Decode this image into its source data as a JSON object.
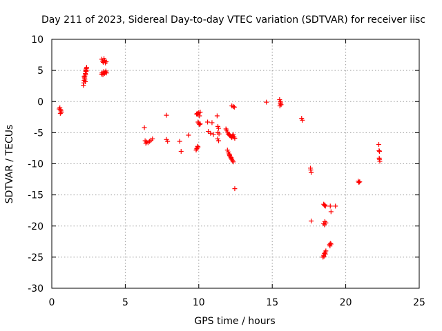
{
  "chart_data": {
    "type": "scatter",
    "title": "Day 211 of 2023, Sidereal Day-to-day VTEC variation (SDTVAR) for receiver iisc",
    "xlabel": "GPS time / hours",
    "ylabel": "SDTVAR / TECUs",
    "xlim": [
      0,
      25
    ],
    "ylim": [
      -30,
      10
    ],
    "xticks": [
      0,
      5,
      10,
      15,
      20,
      25
    ],
    "yticks": [
      -30,
      -25,
      -20,
      -15,
      -10,
      -5,
      0,
      5,
      10
    ],
    "grid": true,
    "marker": "plus",
    "color": "#ff0000",
    "series": [
      {
        "name": "SDTVAR",
        "points": [
          [
            0.55,
            -1.0
          ],
          [
            0.6,
            -1.3
          ],
          [
            0.65,
            -1.7
          ],
          [
            0.58,
            -1.9
          ],
          [
            0.62,
            -1.5
          ],
          [
            0.5,
            -1.2
          ],
          [
            2.15,
            2.6
          ],
          [
            2.18,
            3.0
          ],
          [
            2.2,
            3.4
          ],
          [
            2.22,
            3.8
          ],
          [
            2.25,
            4.1
          ],
          [
            2.28,
            4.5
          ],
          [
            2.3,
            4.8
          ],
          [
            2.32,
            5.1
          ],
          [
            2.35,
            5.3
          ],
          [
            2.37,
            5.5
          ],
          [
            2.2,
            4.0
          ],
          [
            2.25,
            3.6
          ],
          [
            2.3,
            4.3
          ],
          [
            2.35,
            4.9
          ],
          [
            2.28,
            3.2
          ],
          [
            2.33,
            5.0
          ],
          [
            3.4,
            6.8
          ],
          [
            3.45,
            6.5
          ],
          [
            3.5,
            6.3
          ],
          [
            3.55,
            6.9
          ],
          [
            3.6,
            6.6
          ],
          [
            3.65,
            6.2
          ],
          [
            3.7,
            6.4
          ],
          [
            3.38,
            4.4
          ],
          [
            3.42,
            4.6
          ],
          [
            3.48,
            4.3
          ],
          [
            3.52,
            4.8
          ],
          [
            3.58,
            4.5
          ],
          [
            3.63,
            4.7
          ],
          [
            3.68,
            4.9
          ],
          [
            3.72,
            4.6
          ],
          [
            6.3,
            -4.2
          ],
          [
            6.35,
            -6.3
          ],
          [
            6.45,
            -6.5
          ],
          [
            6.55,
            -6.6
          ],
          [
            6.65,
            -6.4
          ],
          [
            6.75,
            -6.2
          ],
          [
            6.85,
            -6.0
          ],
          [
            6.4,
            -6.7
          ],
          [
            7.8,
            -2.2
          ],
          [
            7.8,
            -6.1
          ],
          [
            7.88,
            -6.4
          ],
          [
            8.7,
            -6.4
          ],
          [
            8.8,
            -8.0
          ],
          [
            9.3,
            -5.4
          ],
          [
            9.82,
            -7.8
          ],
          [
            9.88,
            -7.5
          ],
          [
            9.95,
            -7.3
          ],
          [
            9.86,
            -7.6
          ],
          [
            9.92,
            -7.2
          ],
          [
            9.85,
            -2.0
          ],
          [
            9.9,
            -1.9
          ],
          [
            9.95,
            -2.1
          ],
          [
            10.0,
            -1.8
          ],
          [
            10.05,
            -2.3
          ],
          [
            10.1,
            -1.7
          ],
          [
            9.95,
            -3.3
          ],
          [
            10.0,
            -3.5
          ],
          [
            10.05,
            -3.7
          ],
          [
            10.1,
            -3.6
          ],
          [
            10.6,
            -3.3
          ],
          [
            10.65,
            -4.8
          ],
          [
            10.8,
            -5.1
          ],
          [
            10.9,
            -3.4
          ],
          [
            11.0,
            -5.3
          ],
          [
            11.25,
            -2.3
          ],
          [
            11.3,
            -4.0
          ],
          [
            11.35,
            -4.3
          ],
          [
            11.3,
            -5.0
          ],
          [
            11.28,
            -6.0
          ],
          [
            11.35,
            -6.3
          ],
          [
            11.38,
            -5.2
          ],
          [
            11.85,
            -4.4
          ],
          [
            11.9,
            -4.6
          ],
          [
            11.95,
            -4.9
          ],
          [
            12.0,
            -5.2
          ],
          [
            12.05,
            -5.3
          ],
          [
            12.1,
            -5.4
          ],
          [
            12.15,
            -5.5
          ],
          [
            12.2,
            -5.6
          ],
          [
            12.25,
            -5.8
          ],
          [
            12.3,
            -5.5
          ],
          [
            12.35,
            -5.3
          ],
          [
            12.4,
            -5.7
          ],
          [
            12.45,
            -5.9
          ],
          [
            11.95,
            -7.8
          ],
          [
            12.0,
            -8.1
          ],
          [
            12.05,
            -8.4
          ],
          [
            12.1,
            -8.7
          ],
          [
            12.15,
            -8.9
          ],
          [
            12.2,
            -9.1
          ],
          [
            12.25,
            -9.3
          ],
          [
            12.3,
            -9.5
          ],
          [
            12.35,
            -9.7
          ],
          [
            12.1,
            -8.5
          ],
          [
            12.2,
            -9.0
          ],
          [
            12.25,
            -0.7
          ],
          [
            12.35,
            -0.8
          ],
          [
            12.42,
            -0.9
          ],
          [
            12.45,
            -14.0
          ],
          [
            14.6,
            -0.1
          ],
          [
            15.5,
            0.3
          ],
          [
            15.55,
            -0.3
          ],
          [
            15.6,
            -0.5
          ],
          [
            15.52,
            -0.7
          ],
          [
            15.58,
            -0.2
          ],
          [
            15.55,
            0.0
          ],
          [
            17.0,
            -2.7
          ],
          [
            17.05,
            -3.0
          ],
          [
            17.6,
            -10.7
          ],
          [
            17.62,
            -11.0
          ],
          [
            17.65,
            -11.4
          ],
          [
            17.65,
            -19.2
          ],
          [
            18.5,
            -16.5
          ],
          [
            18.55,
            -16.7
          ],
          [
            18.62,
            -16.8
          ],
          [
            18.58,
            -16.6
          ],
          [
            18.5,
            -19.6
          ],
          [
            18.58,
            -19.3
          ],
          [
            18.65,
            -19.5
          ],
          [
            18.55,
            -19.8
          ],
          [
            18.45,
            -25.0
          ],
          [
            18.5,
            -24.7
          ],
          [
            18.55,
            -24.4
          ],
          [
            18.6,
            -24.2
          ],
          [
            18.65,
            -24.0
          ],
          [
            18.52,
            -24.9
          ],
          [
            18.62,
            -24.5
          ],
          [
            18.9,
            -23.0
          ],
          [
            18.95,
            -22.8
          ],
          [
            19.0,
            -22.9
          ],
          [
            18.93,
            -23.2
          ],
          [
            18.95,
            -16.8
          ],
          [
            19.0,
            -17.7
          ],
          [
            19.3,
            -16.8
          ],
          [
            20.85,
            -12.8
          ],
          [
            20.9,
            -13.0
          ],
          [
            20.95,
            -12.9
          ],
          [
            22.25,
            -6.9
          ],
          [
            22.3,
            -8.0
          ],
          [
            22.28,
            -9.1
          ],
          [
            22.3,
            -9.3
          ],
          [
            22.32,
            -9.6
          ],
          [
            22.27,
            -7.9
          ]
        ]
      }
    ]
  }
}
